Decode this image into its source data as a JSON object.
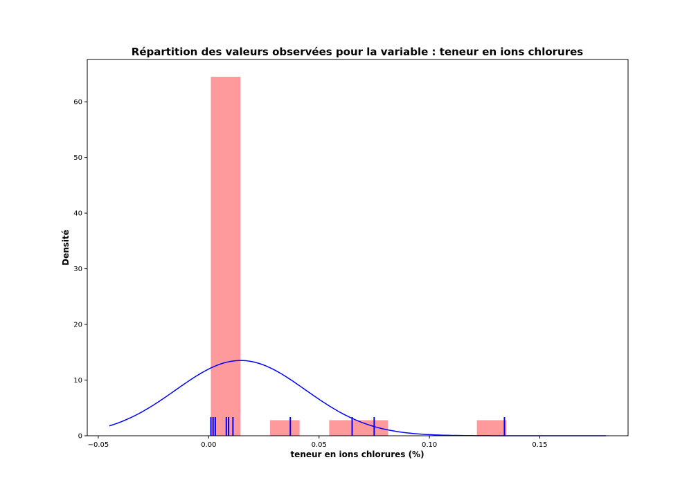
{
  "chart_data": {
    "type": "histogram",
    "title": "Répartition des valeurs observées pour la variable : teneur en ions chlorures",
    "xlabel": "teneur en ions chlorures (%)",
    "ylabel": "Densité",
    "xlim": [
      -0.055,
      0.19
    ],
    "ylim": [
      0,
      67.6
    ],
    "x_ticks": [
      -0.05,
      0.0,
      0.05,
      0.1,
      0.15
    ],
    "x_tick_labels": [
      "−0.05",
      "0.00",
      "0.05",
      "0.10",
      "0.15"
    ],
    "y_ticks": [
      0,
      10,
      20,
      30,
      40,
      50,
      60
    ],
    "y_tick_labels": [
      "0",
      "10",
      "20",
      "30",
      "40",
      "50",
      "60"
    ],
    "bins": [
      {
        "x0": 0.001,
        "x1": 0.0144,
        "density": 64.5
      },
      {
        "x0": 0.0278,
        "x1": 0.0412,
        "density": 2.8
      },
      {
        "x0": 0.0546,
        "x1": 0.0813,
        "density": 2.8
      },
      {
        "x0": 0.1215,
        "x1": 0.1349,
        "density": 2.8
      }
    ],
    "rug": [
      0.001,
      0.002,
      0.003,
      0.008,
      0.009,
      0.011,
      0.037,
      0.065,
      0.075,
      0.134
    ],
    "curve": {
      "mean": 0.0145,
      "std": 0.0295,
      "x_range": [
        -0.045,
        0.18
      ]
    },
    "colors": {
      "bars": "#ff9a9c",
      "curve": "#0000ff",
      "rug": "#0000ff"
    },
    "grid": false
  }
}
